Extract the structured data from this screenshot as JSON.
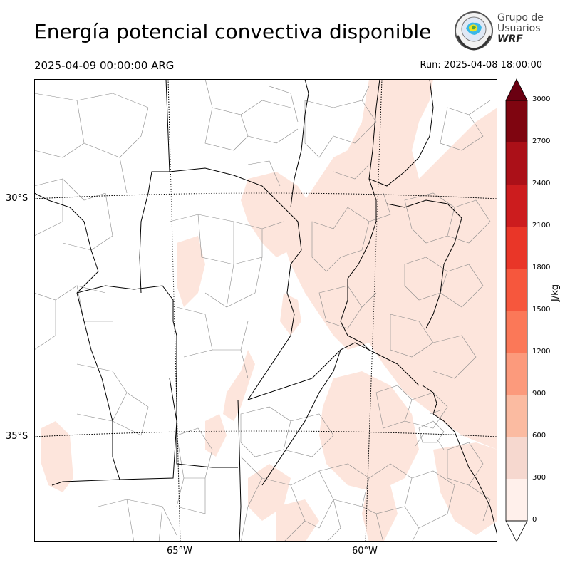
{
  "title": "Energía potencial convectiva disponible",
  "valid_time": "2025-04-09 00:00:00 ARG",
  "run_time": "Run: 2025-04-08 18:00:00",
  "logo": {
    "line1": "Grupo de",
    "line2": "Usuarios",
    "line3": "WRF",
    "icon": "wrf-globe-logo"
  },
  "lat_labels": [
    "30°S",
    "35°S"
  ],
  "lon_labels": [
    "65°W",
    "60°W"
  ],
  "colorbar": {
    "label": "J/kg",
    "ticks": [
      "3000",
      "2700",
      "2400",
      "2100",
      "1800",
      "1500",
      "1200",
      "900",
      "600",
      "300",
      "0"
    ],
    "colors": [
      "#fff0eb",
      "#f6d8cf",
      "#fbbba1",
      "#fc9a7c",
      "#fb7858",
      "#f6573d",
      "#e93628",
      "#cc1c1e",
      "#ab1018",
      "#7f0510"
    ],
    "extend_min_color": "#ffffff",
    "extend_max_color": "#6a0011"
  },
  "colors": {
    "cape_low": "#fde5dc",
    "border": "#000000",
    "department": "#888888",
    "grid": "#000000"
  }
}
